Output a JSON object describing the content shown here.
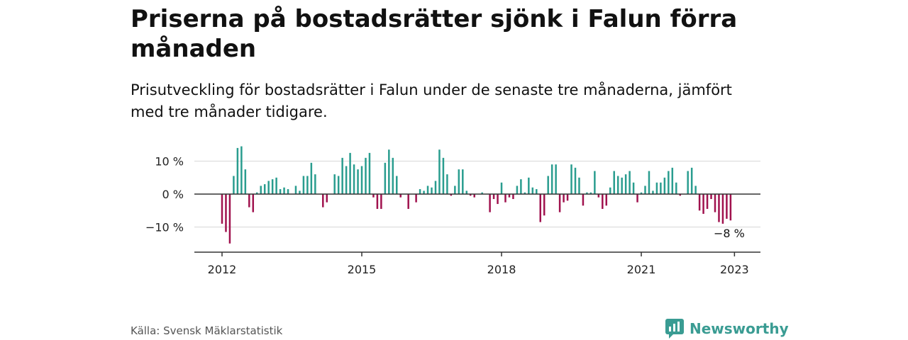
{
  "header": {
    "title": "Priserna på bostadsrätter sjönk i Falun förra månaden",
    "subtitle": "Prisutveckling för bostadsrätter i Falun under de senaste tre månaderna, jämfört med tre månader tidigare."
  },
  "footer": {
    "source": "Källa: Svensk Mäklarstatistik",
    "brand": "Newsworthy"
  },
  "colors": {
    "positive": "#2a9d8f",
    "negative": "#a0124e",
    "brand": "#3a9c93"
  },
  "chart_data": {
    "type": "bar",
    "title": "",
    "xlabel": "",
    "ylabel": "",
    "ylim": [
      -18,
      15
    ],
    "grid": true,
    "y_ticks": [
      {
        "value": 10,
        "label": "10 %"
      },
      {
        "value": 0,
        "label": "0 %"
      },
      {
        "value": -10,
        "label": "−10 %"
      }
    ],
    "x_ticks": [
      {
        "value": 2012,
        "label": "2012"
      },
      {
        "value": 2015,
        "label": "2015"
      },
      {
        "value": 2018,
        "label": "2018"
      },
      {
        "value": 2021,
        "label": "2021"
      },
      {
        "value": 2023,
        "label": "2023"
      }
    ],
    "annotation": {
      "text": "−8 %",
      "x": "2022-12"
    },
    "x": [
      "2012-01",
      "2012-02",
      "2012-03",
      "2012-04",
      "2012-05",
      "2012-06",
      "2012-07",
      "2012-08",
      "2012-09",
      "2012-10",
      "2012-11",
      "2012-12",
      "2013-01",
      "2013-02",
      "2013-03",
      "2013-04",
      "2013-05",
      "2013-06",
      "2013-07",
      "2013-08",
      "2013-09",
      "2013-10",
      "2013-11",
      "2013-12",
      "2014-01",
      "2014-02",
      "2014-03",
      "2014-04",
      "2014-05",
      "2014-06",
      "2014-07",
      "2014-08",
      "2014-09",
      "2014-10",
      "2014-11",
      "2014-12",
      "2015-01",
      "2015-02",
      "2015-03",
      "2015-04",
      "2015-05",
      "2015-06",
      "2015-07",
      "2015-08",
      "2015-09",
      "2015-10",
      "2015-11",
      "2015-12",
      "2016-01",
      "2016-02",
      "2016-03",
      "2016-04",
      "2016-05",
      "2016-06",
      "2016-07",
      "2016-08",
      "2016-09",
      "2016-10",
      "2016-11",
      "2016-12",
      "2017-01",
      "2017-02",
      "2017-03",
      "2017-04",
      "2017-05",
      "2017-06",
      "2017-07",
      "2017-08",
      "2017-09",
      "2017-10",
      "2017-11",
      "2017-12",
      "2018-01",
      "2018-02",
      "2018-03",
      "2018-04",
      "2018-05",
      "2018-06",
      "2018-07",
      "2018-08",
      "2018-09",
      "2018-10",
      "2018-11",
      "2018-12",
      "2019-01",
      "2019-02",
      "2019-03",
      "2019-04",
      "2019-05",
      "2019-06",
      "2019-07",
      "2019-08",
      "2019-09",
      "2019-10",
      "2019-11",
      "2019-12",
      "2020-01",
      "2020-02",
      "2020-03",
      "2020-04",
      "2020-05",
      "2020-06",
      "2020-07",
      "2020-08",
      "2020-09",
      "2020-10",
      "2020-11",
      "2020-12",
      "2021-01",
      "2021-02",
      "2021-03",
      "2021-04",
      "2021-05",
      "2021-06",
      "2021-07",
      "2021-08",
      "2021-09",
      "2021-10",
      "2021-11",
      "2021-12",
      "2022-01",
      "2022-02",
      "2022-03",
      "2022-04",
      "2022-05",
      "2022-06",
      "2022-07",
      "2022-08",
      "2022-09",
      "2022-10",
      "2022-11",
      "2022-12"
    ],
    "values": [
      -9,
      -11.5,
      -15,
      5.5,
      14,
      14.5,
      7.5,
      -4,
      -5.5,
      0.5,
      2.5,
      3,
      4,
      4.5,
      5,
      1.5,
      2,
      1.5,
      0,
      2.5,
      1,
      5.5,
      5.5,
      9.5,
      6,
      0,
      -4,
      -2.5,
      0,
      6,
      5.5,
      11,
      8.5,
      12.5,
      9,
      7.5,
      8.5,
      11,
      12.5,
      -1,
      -4.5,
      -4.5,
      9.5,
      13.5,
      11,
      5.5,
      -1,
      0,
      -4.5,
      0,
      -2.5,
      1.5,
      1,
      2.5,
      2,
      4,
      13.5,
      11,
      6,
      -0.5,
      2.5,
      7.5,
      7.5,
      1,
      -0.5,
      -1,
      0,
      0.5,
      0,
      -5.5,
      -1.5,
      -3,
      3.5,
      -2.5,
      -1,
      -1.5,
      2.5,
      4.5,
      0.5,
      5,
      2,
      1.5,
      -8.5,
      -6.5,
      5.5,
      9,
      9,
      -5.5,
      -2.5,
      -2,
      9,
      8,
      5,
      -3.5,
      0.5,
      0.5,
      7,
      -1,
      -4.5,
      -3.5,
      2,
      7,
      5.5,
      5,
      6,
      7,
      3.5,
      -2.5,
      0.5,
      2.5,
      7,
      1,
      3.5,
      3.5,
      5,
      7,
      8,
      3.5,
      -0.5,
      0,
      7,
      8,
      2.5,
      -5,
      -6,
      -4.5,
      -1.5,
      -5.5,
      -8.5,
      -9,
      -7.5,
      -8
    ]
  }
}
